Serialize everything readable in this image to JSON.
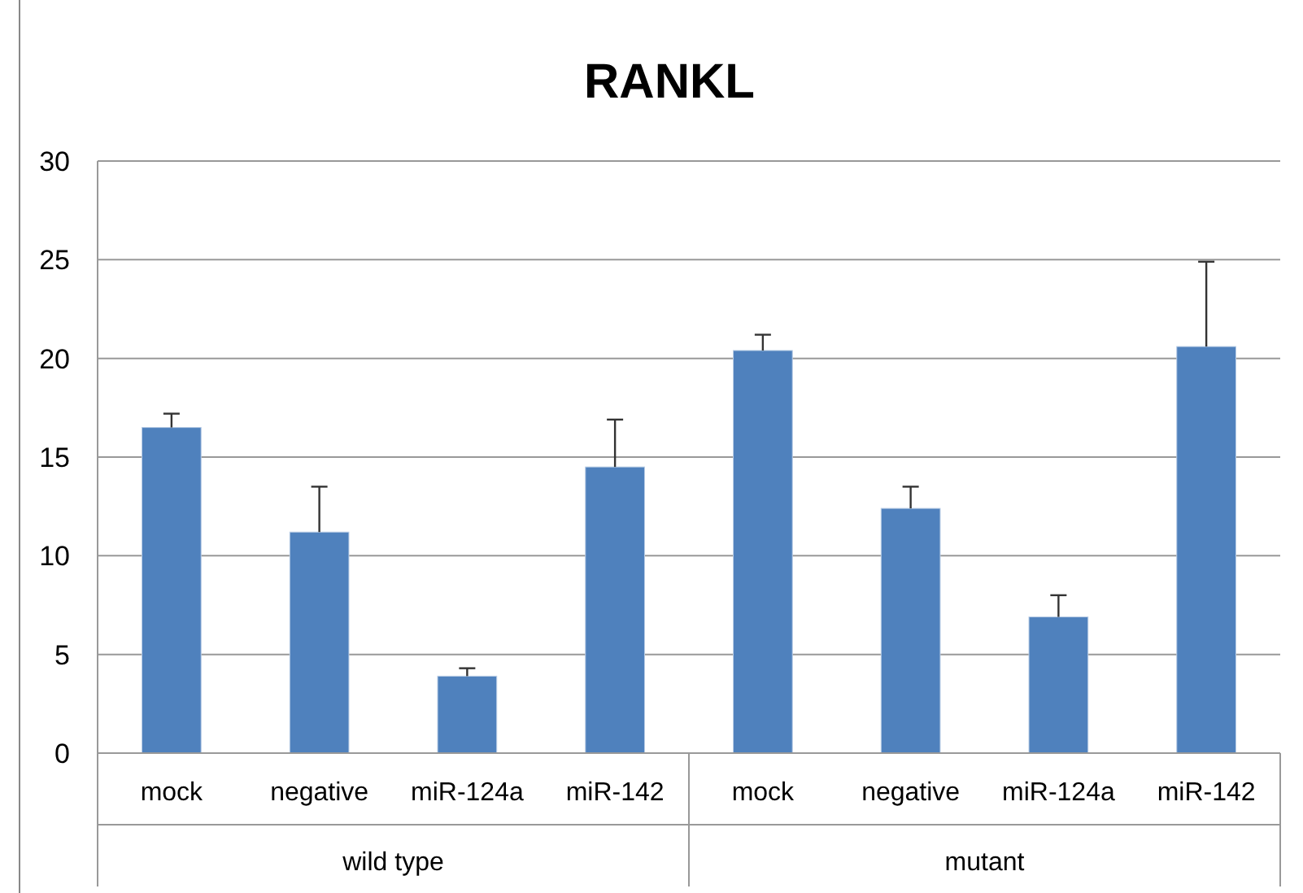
{
  "chart_data": {
    "type": "bar",
    "title": "RANKL",
    "categories": [
      "mock",
      "negative",
      "miR-124a",
      "miR-142",
      "mock",
      "negative",
      "miR-124a",
      "miR-142"
    ],
    "values": [
      16.5,
      11.2,
      3.9,
      14.5,
      20.4,
      12.4,
      6.9,
      20.6
    ],
    "errors": [
      [
        16.5,
        17.2
      ],
      [
        11.2,
        13.5
      ],
      [
        3.9,
        4.3
      ],
      [
        14.5,
        16.9
      ],
      [
        20.4,
        21.2
      ],
      [
        12.4,
        13.5
      ],
      [
        6.9,
        8.0
      ],
      [
        20.6,
        24.9
      ]
    ],
    "color": "#4f81bd",
    "annotations": [
      "wild type",
      "mutant"
    ],
    "ylim": [
      0,
      30
    ],
    "yticks": [
      0,
      5,
      10,
      15,
      20,
      25,
      30
    ],
    "grid": "y"
  }
}
